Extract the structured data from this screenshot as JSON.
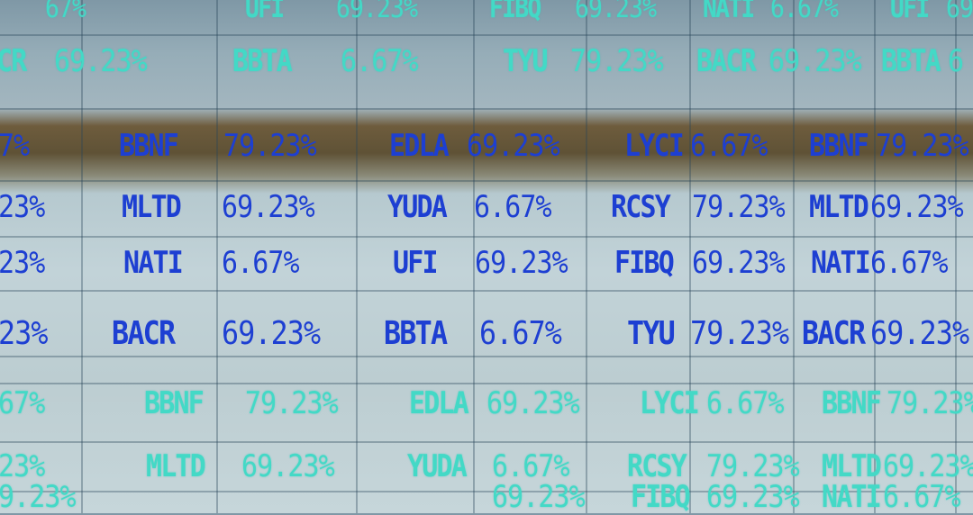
{
  "colors": {
    "cyan": "#43d9c6",
    "blue": "#1d3fd2",
    "band": "#5f5236"
  },
  "rows": [
    {
      "color": "cyan",
      "cells": [
        "67%",
        "UFI",
        "69.23%",
        "FIBQ",
        "69.23%",
        "NATI",
        "6.67%",
        "UFI",
        "69"
      ]
    },
    {
      "color": "cyan",
      "cells": [
        "CR",
        "69.23%",
        "BBTA",
        "6.67%",
        "TYU",
        "79.23%",
        "BACR",
        "69.23%",
        "BBTA",
        "6"
      ]
    },
    {
      "color": "blue",
      "cells": [
        "7%",
        "BBNF",
        "79.23%",
        "EDLA",
        "69.23%",
        "LYCI",
        "6.67%",
        "BBNF",
        "79.23%"
      ]
    },
    {
      "color": "blue",
      "cells": [
        "23%",
        "MLTD",
        "69.23%",
        "YUDA",
        "6.67%",
        "RCSY",
        "79.23%",
        "MLTD",
        "69.23%"
      ]
    },
    {
      "color": "blue",
      "cells": [
        "23%",
        "NATI",
        "6.67%",
        "UFI",
        "69.23%",
        "FIBQ",
        "69.23%",
        "NATI",
        "6.67%"
      ]
    },
    {
      "color": "blue",
      "cells": [
        "23%",
        "BACR",
        "69.23%",
        "BBTA",
        "6.67%",
        "TYU",
        "79.23%",
        "BACR",
        "69.23%"
      ]
    },
    {
      "color": "cyan",
      "cells": [
        "67%",
        "BBNF",
        "79.23%",
        "EDLA",
        "69.23%",
        "LYCI",
        "6.67%",
        "BBNF",
        "79.23%"
      ]
    },
    {
      "color": "cyan",
      "cells": [
        "23%",
        "MLTD",
        "69.23%",
        "YUDA",
        "6.67%",
        "RCSY",
        "79.23%",
        "MLTD",
        "69.23%"
      ]
    },
    {
      "color": "cyan",
      "cells": [
        "9.23%",
        "69.23%",
        "FIBQ",
        "69.23%",
        "NATI",
        "6.67%"
      ]
    }
  ]
}
